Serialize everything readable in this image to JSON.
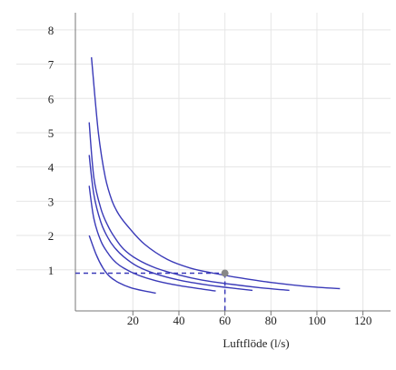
{
  "chart_data": {
    "type": "line",
    "title": "",
    "xlabel": "Luftflöde (l/s)",
    "ylabel": "",
    "xlim": [
      -5,
      132
    ],
    "ylim": [
      -0.2,
      8.5
    ],
    "xticks": [
      20,
      40,
      60,
      80,
      100,
      120
    ],
    "yticks": [
      1,
      2,
      3,
      4,
      5,
      6,
      7,
      8
    ],
    "x_tick_labels": [
      "20",
      "40",
      "60",
      "80",
      "100",
      120
    ],
    "y_tick_labels": [
      "1",
      "2",
      "3",
      "4",
      "5",
      "6",
      "7",
      "8"
    ],
    "grid": true,
    "legend": "none",
    "line_color": "#3a3ab8",
    "marker_color": "#888888",
    "series": [
      {
        "x": [
          2,
          5,
          8,
          11,
          14,
          18,
          25,
          35,
          45,
          55,
          65,
          80,
          95,
          110
        ],
        "y": [
          7.2,
          5.0,
          3.7,
          3.0,
          2.6,
          2.25,
          1.75,
          1.3,
          1.05,
          0.9,
          0.78,
          0.63,
          0.52,
          0.45
        ]
      },
      {
        "x": [
          1,
          3,
          6,
          9,
          12,
          16,
          22,
          30,
          40,
          50,
          60,
          75,
          88
        ],
        "y": [
          5.3,
          3.7,
          2.8,
          2.3,
          1.95,
          1.6,
          1.3,
          1.05,
          0.85,
          0.7,
          0.6,
          0.48,
          0.4
        ]
      },
      {
        "x": [
          1,
          3,
          6,
          9,
          12,
          16,
          22,
          30,
          40,
          50,
          60,
          72
        ],
        "y": [
          4.35,
          3.2,
          2.4,
          1.95,
          1.65,
          1.38,
          1.1,
          0.88,
          0.7,
          0.58,
          0.49,
          0.4
        ]
      },
      {
        "x": [
          1,
          3,
          6,
          9,
          12,
          16,
          22,
          30,
          40,
          50,
          56
        ],
        "y": [
          3.45,
          2.5,
          1.85,
          1.5,
          1.25,
          1.05,
          0.85,
          0.68,
          0.54,
          0.44,
          0.38
        ]
      },
      {
        "x": [
          1,
          4,
          7,
          10,
          14,
          19,
          25,
          30
        ],
        "y": [
          2.0,
          1.45,
          1.05,
          0.8,
          0.62,
          0.48,
          0.38,
          0.32
        ]
      }
    ],
    "reference_point": {
      "x": 60,
      "y": 0.9
    }
  }
}
